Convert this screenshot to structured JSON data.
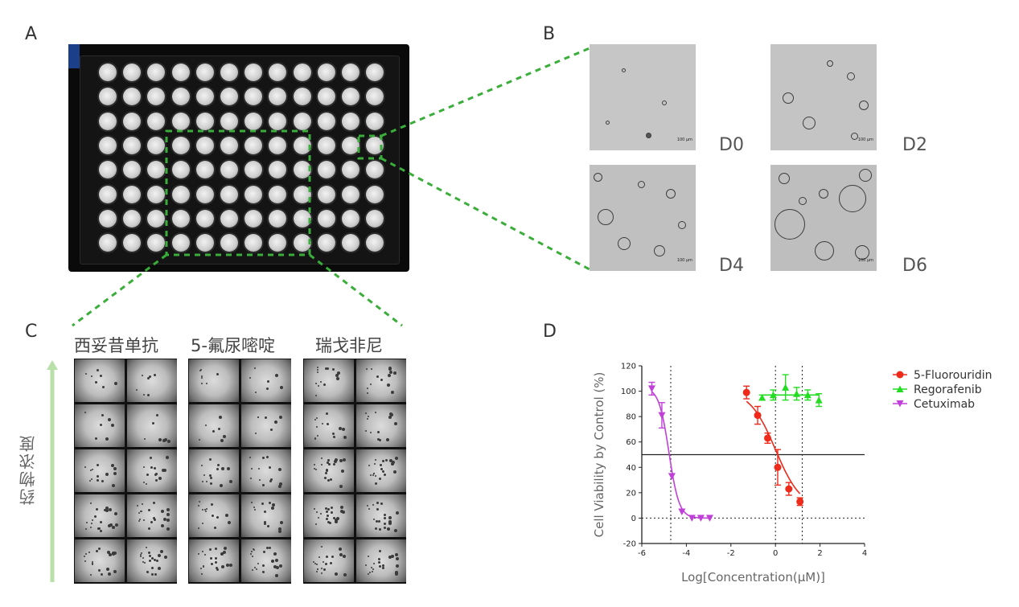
{
  "panels": {
    "A": "A",
    "B": "B",
    "C": "C",
    "D": "D"
  },
  "plate": {
    "rows": 8,
    "cols": 12
  },
  "panel_b": {
    "days": [
      "D0",
      "D2",
      "D4",
      "D6"
    ],
    "scalebar": "100 μm"
  },
  "panel_c": {
    "drugs": [
      "西妥昔单抗",
      "5-氟尿嘧啶",
      "瑞戈非尼"
    ],
    "vertical_label": "药物浓度",
    "rows": 5
  },
  "colors": {
    "highlight": "#3aad3a",
    "fluorouridin": "#ee2a1a",
    "regorafenib": "#22dd22",
    "cetuximab": "#c040d8",
    "arrow": "#b9e0a8"
  },
  "chart_data": {
    "type": "scatter",
    "xlabel": "Log[Concentration(μM)]",
    "ylabel": "Cell Viability by Control (%)",
    "xlim": [
      -6,
      4
    ],
    "ylim": [
      -20,
      120
    ],
    "xticks": [
      -6,
      -4,
      -2,
      0,
      2,
      4
    ],
    "yticks": [
      -20,
      0,
      20,
      40,
      60,
      80,
      100,
      120
    ],
    "reference_lines": {
      "horizontal_solid": 50,
      "horizontal_dotted": 0,
      "vertical_dotted": [
        -4.7,
        0,
        1.2
      ]
    },
    "legend_position": "right",
    "series": [
      {
        "name": "5-Fluorouridin",
        "marker": "circle",
        "x": [
          -1.3,
          -0.8,
          -0.35,
          0.1,
          0.6,
          1.1
        ],
        "y": [
          99,
          81,
          63,
          40,
          23,
          13
        ],
        "err": [
          5,
          7,
          4,
          14,
          5,
          3
        ],
        "curve": {
          "top": 101,
          "bottom": 7,
          "logIC50": 0.0,
          "hill": -0.75
        }
      },
      {
        "name": "Regorafenib",
        "marker": "triangle-up",
        "x": [
          -0.6,
          -0.1,
          0.45,
          0.95,
          1.45,
          1.95
        ],
        "y": [
          95,
          97,
          103,
          98,
          97,
          93
        ],
        "err": [
          2,
          4,
          10,
          5,
          4,
          5
        ],
        "line": 97
      },
      {
        "name": "Cetuximab",
        "marker": "triangle-down",
        "x": [
          -5.55,
          -5.1,
          -4.65,
          -4.2,
          -3.75,
          -3.35,
          -2.95
        ],
        "y": [
          102,
          81,
          33,
          5,
          0,
          0,
          0
        ],
        "err": [
          5,
          10,
          0,
          0,
          0,
          0,
          0
        ],
        "curve": {
          "top": 103,
          "bottom": 0,
          "logIC50": -4.78,
          "hill": -1.9
        }
      }
    ]
  }
}
